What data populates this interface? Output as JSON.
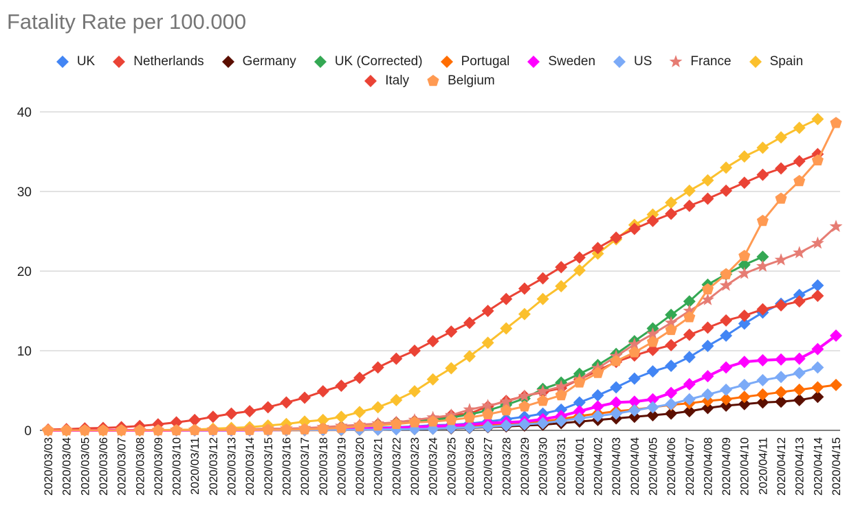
{
  "chart_data": {
    "type": "line",
    "title": "Fatality Rate per 100.000",
    "xlabel": "",
    "ylabel": "",
    "ylim": [
      0,
      40
    ],
    "yticks": [
      0,
      10,
      20,
      30,
      40
    ],
    "grid": true,
    "legend_position": "top",
    "x": [
      "2020/03/03",
      "2020/03/04",
      "2020/03/05",
      "2020/03/06",
      "2020/03/07",
      "2020/03/08",
      "2020/03/09",
      "2020/03/10",
      "2020/03/11",
      "2020/03/12",
      "2020/03/13",
      "2020/03/14",
      "2020/03/15",
      "2020/03/16",
      "2020/03/17",
      "2020/03/18",
      "2020/03/19",
      "2020/03/20",
      "2020/03/21",
      "2020/03/22",
      "2020/03/23",
      "2020/03/24",
      "2020/03/25",
      "2020/03/26",
      "2020/03/27",
      "2020/03/28",
      "2020/03/29",
      "2020/03/30",
      "2020/03/31",
      "2020/04/01",
      "2020/04/02",
      "2020/04/03",
      "2020/04/04",
      "2020/04/05",
      "2020/04/06",
      "2020/04/07",
      "2020/04/08",
      "2020/04/09",
      "2020/04/10",
      "2020/04/11",
      "2020/04/12",
      "2020/04/13",
      "2020/04/14",
      "2020/04/15"
    ],
    "series": [
      {
        "name": "UK",
        "color": "#4285f4",
        "marker": "diamond",
        "values": [
          0,
          0,
          0,
          0,
          0,
          0,
          0,
          0,
          0,
          0.01,
          0.02,
          0.03,
          0.03,
          0.08,
          0.1,
          0.15,
          0.2,
          0.25,
          0.35,
          0.4,
          0.5,
          0.65,
          0.7,
          0.85,
          1.1,
          1.4,
          1.7,
          2.1,
          2.6,
          3.5,
          4.4,
          5.4,
          6.5,
          7.4,
          8.1,
          9.2,
          10.6,
          11.9,
          13.4,
          14.8,
          15.9,
          17.0,
          18.2,
          null
        ]
      },
      {
        "name": "Netherlands",
        "color": "#ea4335",
        "marker": "diamond",
        "values": [
          0,
          0,
          0,
          0,
          0,
          0.02,
          0.02,
          0.02,
          0.03,
          0.03,
          0.06,
          0.1,
          0.12,
          0.14,
          0.25,
          0.34,
          0.45,
          0.6,
          0.8,
          1.0,
          1.2,
          1.4,
          1.9,
          2.1,
          3.0,
          3.7,
          4.3,
          4.8,
          5.3,
          6.4,
          7.5,
          8.6,
          9.4,
          10.1,
          10.7,
          12.0,
          12.9,
          13.8,
          14.4,
          15.2,
          15.7,
          16.2,
          16.9,
          null
        ]
      },
      {
        "name": "Germany",
        "color": "#5b0f00",
        "marker": "diamond",
        "values": [
          0,
          0,
          0,
          0,
          0,
          0,
          0,
          0,
          0.01,
          0.01,
          0.01,
          0.01,
          0.02,
          0.02,
          0.03,
          0.04,
          0.05,
          0.08,
          0.1,
          0.15,
          0.15,
          0.2,
          0.25,
          0.3,
          0.4,
          0.5,
          0.6,
          0.7,
          0.9,
          1.1,
          1.3,
          1.5,
          1.7,
          1.9,
          2.1,
          2.4,
          2.8,
          3.1,
          3.3,
          3.5,
          3.6,
          3.8,
          4.2,
          null
        ]
      },
      {
        "name": "UK (Corrected)",
        "color": "#34a853",
        "marker": "diamond",
        "values": [
          0,
          0,
          0,
          0,
          0,
          0,
          0,
          0,
          0.01,
          0.02,
          0.05,
          0.08,
          0.1,
          0.15,
          0.2,
          0.3,
          0.4,
          0.5,
          0.7,
          0.9,
          1.1,
          1.3,
          1.6,
          2.0,
          2.5,
          3.2,
          4.0,
          5.2,
          6.0,
          7.1,
          8.2,
          9.6,
          11.2,
          12.8,
          14.5,
          16.2,
          18.3,
          19.6,
          20.8,
          21.8,
          null,
          null,
          null,
          null
        ]
      },
      {
        "name": "Portugal",
        "color": "#ff6d01",
        "marker": "diamond",
        "values": [
          0,
          0,
          0,
          0,
          0,
          0,
          0,
          0,
          0,
          0,
          0,
          0,
          0,
          0,
          0.01,
          0.02,
          0.03,
          0.05,
          0.1,
          0.15,
          0.2,
          0.3,
          0.4,
          0.5,
          0.6,
          0.8,
          1.0,
          1.1,
          1.4,
          1.8,
          2.1,
          2.4,
          2.6,
          2.9,
          3.2,
          3.4,
          3.7,
          3.9,
          4.2,
          4.5,
          4.8,
          5.1,
          5.4,
          5.7
        ]
      },
      {
        "name": "Sweden",
        "color": "#ff00ff",
        "marker": "diamond",
        "values": [
          0,
          0,
          0,
          0,
          0,
          0,
          0,
          0,
          0.01,
          0.01,
          0.01,
          0.02,
          0.05,
          0.08,
          0.1,
          0.1,
          0.2,
          0.2,
          0.2,
          0.3,
          0.4,
          0.5,
          0.6,
          0.7,
          0.9,
          1.0,
          1.1,
          1.4,
          1.8,
          2.4,
          3.0,
          3.5,
          3.6,
          3.9,
          4.7,
          5.8,
          6.8,
          7.9,
          8.6,
          8.8,
          8.9,
          9.0,
          10.2,
          11.9
        ]
      },
      {
        "name": "US",
        "color": "#7baaf7",
        "marker": "diamond",
        "values": [
          0,
          0,
          0,
          0,
          0,
          0,
          0,
          0,
          0.01,
          0.01,
          0.01,
          0.02,
          0.02,
          0.03,
          0.03,
          0.05,
          0.06,
          0.08,
          0.1,
          0.13,
          0.15,
          0.2,
          0.3,
          0.35,
          0.45,
          0.6,
          0.75,
          0.9,
          1.2,
          1.5,
          1.8,
          2.1,
          2.5,
          2.9,
          3.3,
          3.9,
          4.5,
          5.1,
          5.7,
          6.3,
          6.7,
          7.2,
          7.9,
          null
        ]
      },
      {
        "name": "France",
        "color": "#e67c73",
        "marker": "star",
        "values": [
          0,
          0,
          0,
          0,
          0,
          0,
          0.03,
          0.05,
          0.07,
          0.1,
          0.12,
          0.14,
          0.2,
          0.22,
          0.28,
          0.4,
          0.55,
          0.7,
          0.85,
          1.0,
          1.3,
          1.6,
          1.9,
          2.6,
          3.1,
          3.6,
          4.3,
          4.9,
          5.5,
          6.4,
          7.8,
          9.3,
          10.8,
          12.1,
          13.5,
          15.0,
          16.4,
          18.2,
          19.7,
          20.6,
          21.4,
          22.3,
          23.5,
          25.6
        ]
      },
      {
        "name": "Spain",
        "color": "#fbc02d",
        "marker": "diamond",
        "values": [
          0,
          0,
          0,
          0,
          0,
          0,
          0.03,
          0.07,
          0.1,
          0.2,
          0.3,
          0.4,
          0.6,
          0.8,
          1.1,
          1.3,
          1.7,
          2.3,
          2.9,
          3.8,
          4.9,
          6.4,
          7.8,
          9.3,
          11.0,
          12.8,
          14.6,
          16.5,
          18.1,
          20.1,
          22.2,
          24.0,
          25.8,
          27.1,
          28.6,
          30.1,
          31.4,
          33.0,
          34.4,
          35.5,
          36.8,
          38.0,
          39.1,
          null
        ]
      },
      {
        "name": "Italy",
        "color": "#ea4335",
        "marker": "diamond",
        "values": [
          0.1,
          0.15,
          0.25,
          0.3,
          0.4,
          0.55,
          0.75,
          1.0,
          1.3,
          1.7,
          2.1,
          2.4,
          2.9,
          3.5,
          4.1,
          4.9,
          5.6,
          6.6,
          7.9,
          9.0,
          10.0,
          11.2,
          12.4,
          13.5,
          15.0,
          16.5,
          17.8,
          19.1,
          20.5,
          21.7,
          22.9,
          24.2,
          25.3,
          26.3,
          27.2,
          28.2,
          29.1,
          30.1,
          31.1,
          32.1,
          32.9,
          33.8,
          34.7,
          null
        ]
      },
      {
        "name": "Belgium",
        "color": "#ff9a52",
        "marker": "pentagon",
        "values": [
          0,
          0,
          0,
          0,
          0,
          0,
          0,
          0,
          0.03,
          0.03,
          0.04,
          0.04,
          0.06,
          0.08,
          0.12,
          0.2,
          0.3,
          0.5,
          0.6,
          0.8,
          1.0,
          1.1,
          1.3,
          1.6,
          2.0,
          2.5,
          3.0,
          3.7,
          4.4,
          6.0,
          7.2,
          8.7,
          9.8,
          11.1,
          12.6,
          14.2,
          17.7,
          19.6,
          21.9,
          26.3,
          29.1,
          31.3,
          33.9,
          38.6
        ]
      }
    ]
  }
}
